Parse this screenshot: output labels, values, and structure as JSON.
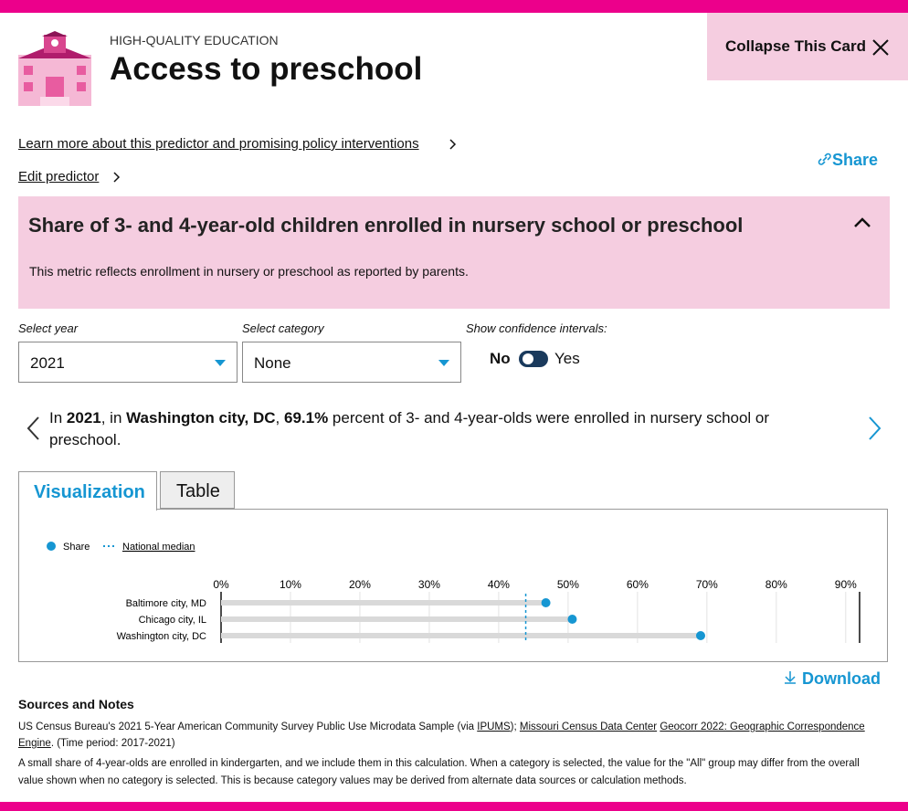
{
  "header": {
    "eyebrow": "HIGH-QUALITY EDUCATION",
    "title": "Access to preschool",
    "collapse": "Collapse This Card"
  },
  "links": {
    "learn_more": "Learn more about this predictor and promising policy interventions",
    "edit": "Edit predictor",
    "share": "Share"
  },
  "metric": {
    "title": "Share of 3- and 4-year-old children enrolled in nursery school or preschool",
    "description": "This metric reflects enrollment in nursery or preschool as reported by parents."
  },
  "controls": {
    "year_label": "Select year",
    "year": "2021",
    "category_label": "Select category",
    "category": "None",
    "ci_label": "Show confidence intervals:",
    "no": "No",
    "yes": "Yes"
  },
  "summary": {
    "parts": [
      "In ",
      "2021",
      ", in ",
      "Washington city, DC",
      ", ",
      "69.1%",
      " percent of 3- and 4-year-olds were enrolled in nursery school or preschool."
    ]
  },
  "tabs": [
    "Visualization",
    "Table"
  ],
  "chart_data": {
    "type": "dot",
    "legend": {
      "series": "Share",
      "median": "National median"
    },
    "categories": [
      "Baltimore city, MD",
      "Chicago city, IL",
      "Washington city, DC"
    ],
    "values": [
      46.8,
      50.6,
      69.1
    ],
    "median": 43.9,
    "color": "#1696d2",
    "track_color": "#d9d9d9",
    "xlim": [
      0,
      92
    ],
    "xticks": [
      {
        "value": 0,
        "label": "0%"
      },
      {
        "value": 10,
        "label": "10%"
      },
      {
        "value": 20,
        "label": "20%"
      },
      {
        "value": 30,
        "label": "30%"
      },
      {
        "value": 40,
        "label": "40%"
      },
      {
        "value": 50,
        "label": "50%"
      },
      {
        "value": 60,
        "label": "60%"
      },
      {
        "value": 70,
        "label": "70%"
      },
      {
        "value": 80,
        "label": "80%"
      },
      {
        "value": 90,
        "label": "90%"
      }
    ],
    "grid": true
  },
  "download": "Download",
  "sources": {
    "heading": "Sources and Notes",
    "parts": [
      "US Census Bureau's 2021 5-Year American Community Survey Public Use Microdata Sample (via ",
      "IPUMS",
      ");",
      "Missouri Census Data Center",
      "Geocorr 2022: Geographic Correspondence Engine",
      ". (Time period: 2017-2021)"
    ],
    "note": "A small share of 4-year-olds are enrolled in kindergarten, and we include them in this calculation. When a category is selected, the value for the \"All\" group may differ from the overall value shown when no category is selected. This is because category values may be derived from alternate data sources or calculation methods."
  }
}
